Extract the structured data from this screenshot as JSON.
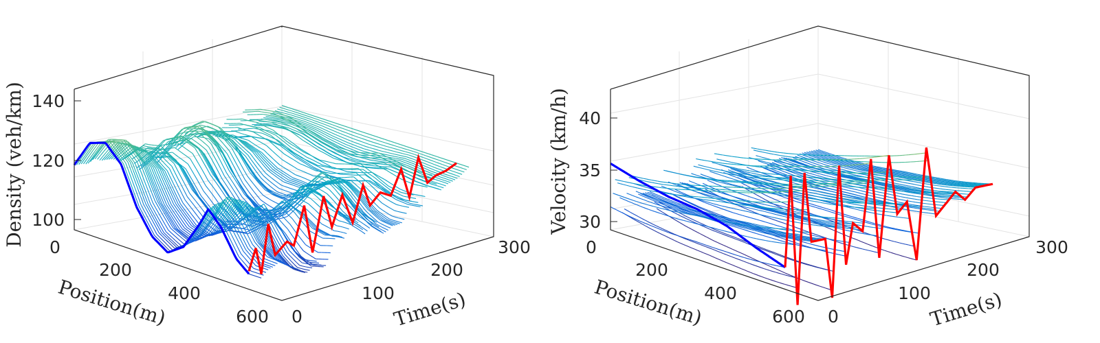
{
  "chart_data": [
    {
      "type": "surface",
      "ylabel": "Density (veh/km)",
      "xlabel": "Position(m)",
      "tlabel": "Time(s)",
      "z_ticks": [
        "100",
        "120",
        "140"
      ],
      "x_ticks": [
        "0",
        "200",
        "400",
        "600"
      ],
      "t_ticks": [
        "0",
        "100",
        "200",
        "300"
      ],
      "zlim": [
        96,
        148
      ],
      "xlim": [
        0,
        600
      ],
      "tlim": [
        0,
        300
      ],
      "colormap": "parula",
      "grid": true,
      "boundary_initial": {
        "color": "#0000ff",
        "description_values": [
          [
            0,
            120
          ],
          [
            50,
            130
          ],
          [
            100,
            132
          ],
          [
            150,
            126
          ],
          [
            200,
            112
          ],
          [
            250,
            103
          ],
          [
            300,
            99
          ],
          [
            350,
            103
          ],
          [
            400,
            113
          ],
          [
            430,
            120
          ],
          [
            470,
            115
          ],
          [
            520,
            105
          ],
          [
            560,
            101
          ]
        ]
      },
      "boundary_end": {
        "color": "#ff0000",
        "values": [
          [
            0,
            102
          ],
          [
            10,
            110
          ],
          [
            18,
            100
          ],
          [
            28,
            118
          ],
          [
            38,
            106
          ],
          [
            55,
            110
          ],
          [
            65,
            108
          ],
          [
            80,
            122
          ],
          [
            92,
            104
          ],
          [
            108,
            124
          ],
          [
            120,
            112
          ],
          [
            135,
            123
          ],
          [
            150,
            112
          ],
          [
            165,
            125
          ],
          [
            175,
            117
          ],
          [
            190,
            121
          ],
          [
            205,
            119
          ],
          [
            220,
            128
          ],
          [
            232,
            117
          ],
          [
            245,
            131
          ],
          [
            258,
            121
          ],
          [
            270,
            123
          ],
          [
            285,
            124
          ],
          [
            300,
            126
          ]
        ]
      }
    },
    {
      "type": "surface",
      "ylabel": "Velocity (km/h)",
      "xlabel": "Position(m)",
      "tlabel": "Time(s)",
      "z_ticks": [
        "30",
        "35",
        "40"
      ],
      "x_ticks": [
        "0",
        "200",
        "400",
        "600"
      ],
      "t_ticks": [
        "0",
        "100",
        "200",
        "300"
      ],
      "zlim": [
        29,
        43
      ],
      "xlim": [
        0,
        600
      ],
      "tlim": [
        0,
        300
      ],
      "colormap": "parula",
      "grid": true,
      "boundary_initial": {
        "color": "#0000ff",
        "values": [
          [
            0,
            35.6
          ],
          [
            100,
            34.8
          ],
          [
            200,
            34.2
          ],
          [
            300,
            33.9
          ],
          [
            400,
            33.2
          ],
          [
            500,
            32.0
          ],
          [
            600,
            31.0
          ]
        ]
      },
      "boundary_end": {
        "color": "#ff0000",
        "values": [
          [
            0,
            31
          ],
          [
            8,
            40
          ],
          [
            18,
            27
          ],
          [
            28,
            40
          ],
          [
            38,
            33
          ],
          [
            48,
            33
          ],
          [
            58,
            33
          ],
          [
            68,
            27
          ],
          [
            78,
            40
          ],
          [
            88,
            30
          ],
          [
            98,
            34
          ],
          [
            112,
            33
          ],
          [
            124,
            40
          ],
          [
            136,
            30
          ],
          [
            150,
            40
          ],
          [
            162,
            34
          ],
          [
            176,
            35
          ],
          [
            190,
            29
          ],
          [
            204,
            40
          ],
          [
            218,
            33
          ],
          [
            232,
            34
          ],
          [
            246,
            35
          ],
          [
            260,
            34
          ],
          [
            275,
            35
          ],
          [
            290,
            35
          ],
          [
            300,
            35
          ]
        ]
      }
    }
  ]
}
